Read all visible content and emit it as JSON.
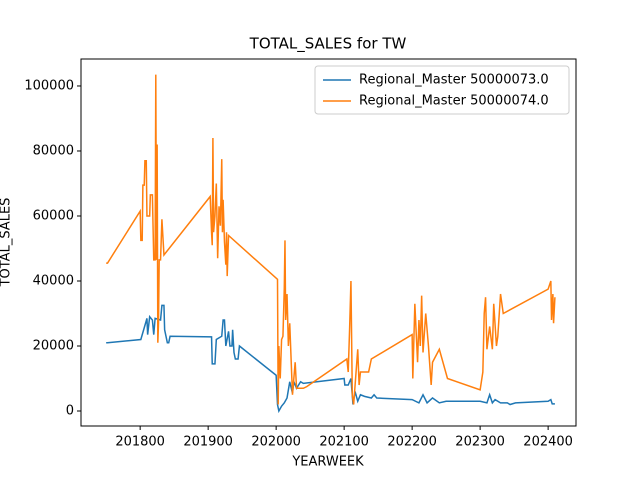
{
  "chart_data": {
    "type": "line",
    "title": "TOTAL_SALES for TW",
    "x_label": "YEARWEEK",
    "y_label": "TOTAL_SALES",
    "xlim": [
      201713,
      202441
    ],
    "ylim": [
      -4615,
      108300
    ],
    "xticks": [
      201800,
      201900,
      202000,
      202100,
      202200,
      202300,
      202400
    ],
    "yticks": [
      0,
      20000,
      40000,
      60000,
      80000,
      100000
    ],
    "legend": "upper right",
    "grid": false,
    "series": [
      {
        "name": "Regional_Master 50000073.0",
        "color": "#1f77b4",
        "x": [
          201750,
          201752,
          201801,
          201810,
          201811,
          201814,
          201818,
          201820,
          201822,
          201830,
          201832,
          201835,
          201836,
          201840,
          201842,
          201844,
          201905,
          201906,
          201910,
          201912,
          201920,
          201922,
          201924,
          201926,
          201930,
          201932,
          201935,
          201936,
          201938,
          201940,
          201944,
          201946,
          202000,
          202002,
          202004,
          202008,
          202012,
          202016,
          202020,
          202024,
          202026,
          202030,
          202036,
          202040,
          202100,
          202101,
          202106,
          202110,
          202113,
          202116,
          202120,
          202124,
          202130,
          202140,
          202144,
          202148,
          202200,
          202210,
          202216,
          202222,
          202230,
          202240,
          202250,
          202300,
          202310,
          202314,
          202318,
          202322,
          202330,
          202340,
          202344,
          202352,
          202400,
          202404,
          202406,
          202410
        ],
        "values": [
          21000,
          21000,
          22000,
          28500,
          23500,
          29000,
          28000,
          23500,
          28500,
          28000,
          32500,
          32500,
          25000,
          21000,
          21000,
          23000,
          22800,
          14500,
          14500,
          22000,
          23000,
          28000,
          28000,
          20000,
          24500,
          20000,
          20000,
          25000,
          18000,
          16000,
          16000,
          20000,
          11000,
          2000,
          0,
          1500,
          2500,
          4000,
          9000,
          5500,
          9000,
          7000,
          9000,
          8500,
          10000,
          8000,
          8000,
          10000,
          2000,
          6000,
          3000,
          5000,
          4500,
          4000,
          5000,
          4000,
          3500,
          2500,
          5000,
          2500,
          4000,
          2500,
          3000,
          3000,
          2500,
          5000,
          2500,
          3500,
          2500,
          2500,
          2000,
          2500,
          3000,
          3500,
          2200,
          2200
        ]
      },
      {
        "name": "Regional_Master 50000074.0",
        "color": "#ff7f0e",
        "x": [
          201750,
          201752,
          201800,
          201801,
          201803,
          201804,
          201806,
          201807,
          201809,
          201810,
          201814,
          201815,
          201818,
          201820,
          201822,
          201823,
          201824,
          201825,
          201826,
          201827,
          201828,
          201830,
          201832,
          201835,
          201903,
          201905,
          201906,
          201907,
          201908,
          201910,
          201912,
          201914,
          201916,
          201918,
          201920,
          201921,
          201922,
          201924,
          201926,
          201927,
          201928,
          201930,
          202002,
          202003,
          202004,
          202006,
          202008,
          202010,
          202012,
          202013,
          202014,
          202016,
          202018,
          202020,
          202024,
          202028,
          202030,
          202040,
          202045,
          202104,
          202106,
          202108,
          202110,
          202112,
          202114,
          202120,
          202122,
          202124,
          202130,
          202136,
          202140,
          202200,
          202201,
          202204,
          202208,
          202210,
          202212,
          202214,
          202216,
          202220,
          202224,
          202228,
          202230,
          202240,
          202252,
          202300,
          202304,
          202306,
          202308,
          202310,
          202314,
          202318,
          202320,
          202324,
          202326,
          202330,
          202334,
          202400,
          202404,
          202405,
          202407,
          202408,
          202410
        ],
        "values": [
          45500,
          45500,
          61500,
          52500,
          52500,
          69500,
          69500,
          77000,
          77000,
          60000,
          60000,
          66500,
          66500,
          46500,
          46500,
          103500,
          46500,
          82000,
          21000,
          27000,
          46500,
          46500,
          59000,
          48000,
          66000,
          55000,
          51000,
          84000,
          55000,
          60000,
          70000,
          47000,
          63000,
          57000,
          77500,
          55000,
          65000,
          52000,
          45000,
          55000,
          41500,
          54000,
          40500,
          2000,
          20000,
          10000,
          22000,
          23000,
          38000,
          52500,
          28000,
          36000,
          20000,
          27000,
          5000,
          15000,
          7000,
          7000,
          7500,
          16000,
          12000,
          25000,
          40000,
          5000,
          2000,
          19000,
          8000,
          12000,
          12000,
          12000,
          16000,
          23500,
          10000,
          33000,
          15000,
          28000,
          20000,
          35500,
          18000,
          30000,
          20000,
          8000,
          15000,
          19000,
          10000,
          6500,
          12000,
          30000,
          35000,
          19000,
          26000,
          19000,
          33000,
          20000,
          23000,
          36000,
          30000,
          37500,
          40000,
          28000,
          36000,
          27000,
          35000
        ]
      }
    ]
  }
}
